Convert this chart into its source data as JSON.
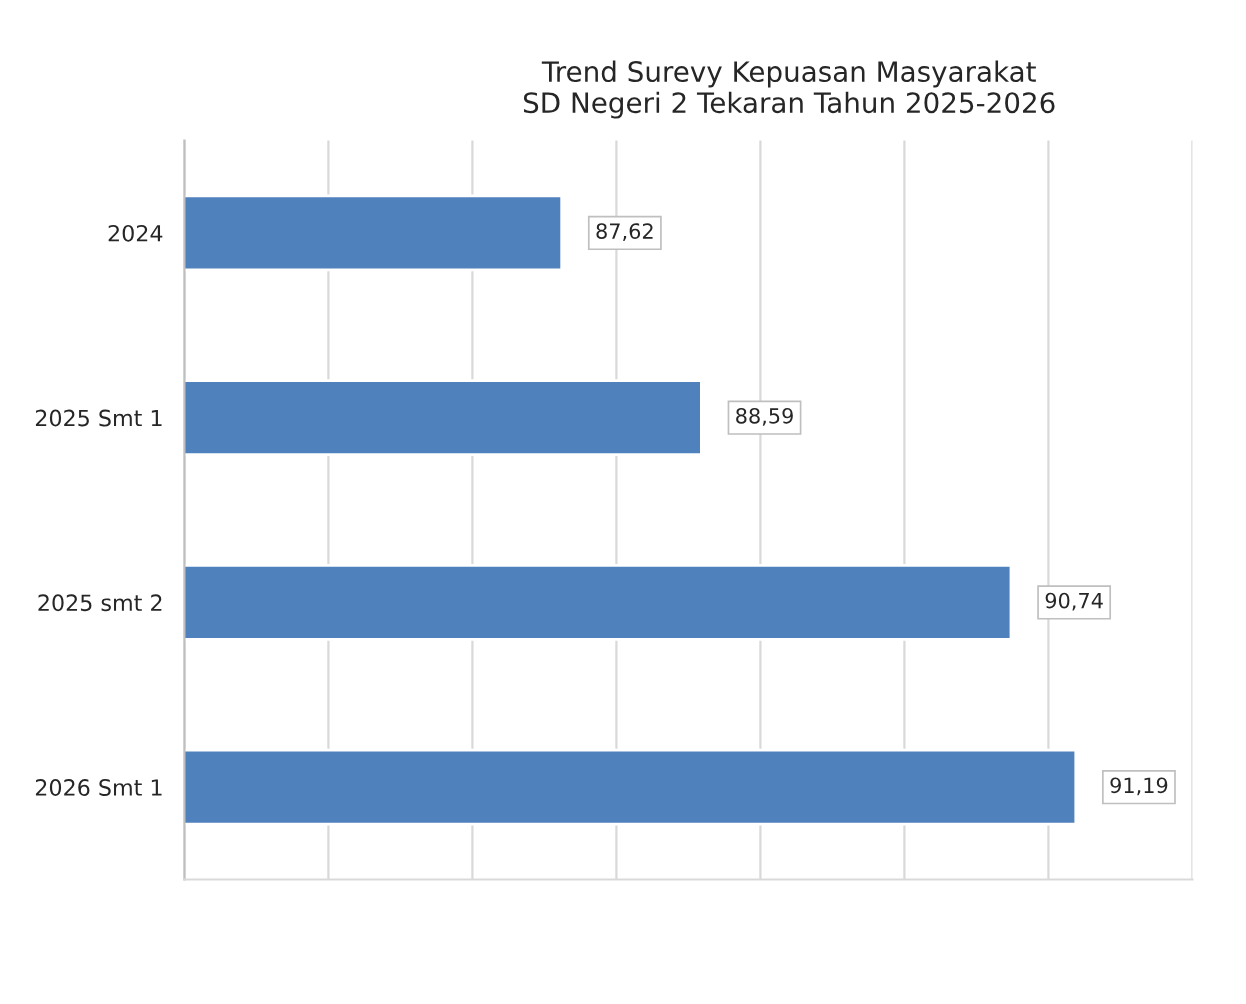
{
  "chart_data": {
    "type": "bar",
    "orientation": "horizontal",
    "title": "Trend Surevy Kepuasan Masyarakat\nSD Negeri 2 Tekaran Tahun 2025-2026",
    "categories": [
      "2024",
      "2025 Smt 1",
      "2025 smt 2",
      "2026 Smt 1"
    ],
    "values": [
      87.62,
      88.59,
      90.74,
      91.19
    ],
    "value_labels": [
      "87,62",
      "88,59",
      "90,74",
      "91,19"
    ],
    "color": "#4f81bd",
    "xlim": [
      85,
      92
    ],
    "tick_labels": "y",
    "grid": "x",
    "legend": false
  }
}
